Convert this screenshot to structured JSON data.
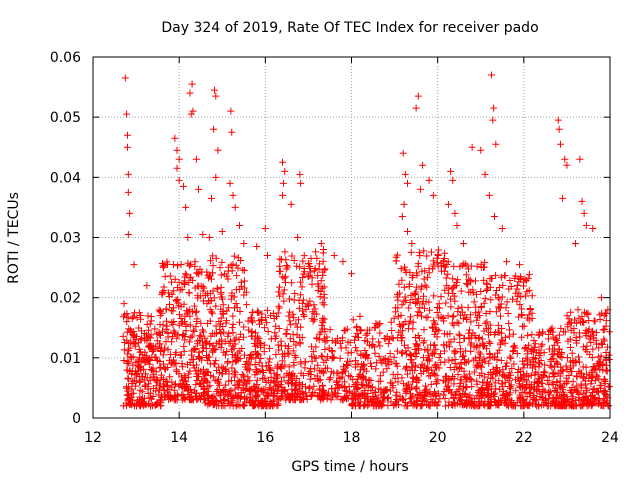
{
  "chart_data": {
    "type": "scatter",
    "title": "Day 324 of 2019, Rate Of TEC Index for receiver pado",
    "xlabel": "GPS time / hours",
    "ylabel": "ROTI / TECUs",
    "xlim": [
      12,
      24
    ],
    "ylim": [
      0,
      0.06
    ],
    "x_ticks": [
      12,
      14,
      16,
      18,
      20,
      22,
      24
    ],
    "x_tick_labels": [
      "12",
      "14",
      "16",
      "18",
      "20",
      "22",
      "24"
    ],
    "y_ticks": [
      0,
      0.01,
      0.02,
      0.03,
      0.04,
      0.05,
      0.06
    ],
    "y_tick_labels": [
      "0",
      "0.01",
      "0.02",
      "0.03",
      "0.04",
      "0.05",
      "0.06"
    ],
    "grid": true,
    "marker": "+",
    "color": "#ff0000",
    "series": [
      {
        "name": "ROTI",
        "points": [
          [
            12.75,
            0.0565
          ],
          [
            12.78,
            0.0505
          ],
          [
            12.8,
            0.047
          ],
          [
            12.8,
            0.045
          ],
          [
            12.82,
            0.0405
          ],
          [
            12.82,
            0.0375
          ],
          [
            12.85,
            0.034
          ],
          [
            12.82,
            0.0305
          ],
          [
            12.95,
            0.0255
          ],
          [
            12.72,
            0.019
          ],
          [
            13.25,
            0.022
          ],
          [
            13.6,
            0.0205
          ],
          [
            13.9,
            0.0465
          ],
          [
            13.95,
            0.0445
          ],
          [
            14.0,
            0.043
          ],
          [
            13.95,
            0.0415
          ],
          [
            14.0,
            0.0395
          ],
          [
            14.1,
            0.0385
          ],
          [
            14.15,
            0.035
          ],
          [
            14.2,
            0.03
          ],
          [
            14.3,
            0.0555
          ],
          [
            14.25,
            0.054
          ],
          [
            14.32,
            0.051
          ],
          [
            14.28,
            0.0505
          ],
          [
            14.4,
            0.043
          ],
          [
            14.45,
            0.038
          ],
          [
            14.55,
            0.0305
          ],
          [
            14.7,
            0.03
          ],
          [
            14.82,
            0.0545
          ],
          [
            14.85,
            0.0535
          ],
          [
            14.8,
            0.048
          ],
          [
            14.9,
            0.0445
          ],
          [
            14.85,
            0.04
          ],
          [
            14.75,
            0.0365
          ],
          [
            15.0,
            0.031
          ],
          [
            15.2,
            0.051
          ],
          [
            15.22,
            0.0475
          ],
          [
            15.18,
            0.039
          ],
          [
            15.25,
            0.037
          ],
          [
            15.3,
            0.035
          ],
          [
            15.4,
            0.032
          ],
          [
            15.5,
            0.029
          ],
          [
            15.8,
            0.0285
          ],
          [
            16.0,
            0.0315
          ],
          [
            16.05,
            0.027
          ],
          [
            16.4,
            0.0425
          ],
          [
            16.45,
            0.041
          ],
          [
            16.42,
            0.039
          ],
          [
            16.4,
            0.037
          ],
          [
            16.6,
            0.0355
          ],
          [
            16.8,
            0.0405
          ],
          [
            16.82,
            0.039
          ],
          [
            16.75,
            0.03
          ],
          [
            17.3,
            0.029
          ],
          [
            17.35,
            0.028
          ],
          [
            17.6,
            0.027
          ],
          [
            17.8,
            0.026
          ],
          [
            18.0,
            0.024
          ],
          [
            19.2,
            0.044
          ],
          [
            19.25,
            0.0405
          ],
          [
            19.3,
            0.039
          ],
          [
            19.22,
            0.0355
          ],
          [
            19.18,
            0.0335
          ],
          [
            19.3,
            0.031
          ],
          [
            19.4,
            0.029
          ],
          [
            19.55,
            0.0535
          ],
          [
            19.5,
            0.0515
          ],
          [
            19.65,
            0.042
          ],
          [
            19.6,
            0.038
          ],
          [
            19.8,
            0.0395
          ],
          [
            19.9,
            0.037
          ],
          [
            20.3,
            0.041
          ],
          [
            20.35,
            0.0395
          ],
          [
            20.25,
            0.0355
          ],
          [
            20.4,
            0.034
          ],
          [
            20.45,
            0.032
          ],
          [
            20.6,
            0.029
          ],
          [
            20.8,
            0.045
          ],
          [
            21.0,
            0.0445
          ],
          [
            21.1,
            0.0405
          ],
          [
            21.2,
            0.037
          ],
          [
            21.25,
            0.057
          ],
          [
            21.3,
            0.0515
          ],
          [
            21.28,
            0.0495
          ],
          [
            21.35,
            0.0455
          ],
          [
            21.32,
            0.0335
          ],
          [
            21.5,
            0.0315
          ],
          [
            21.6,
            0.026
          ],
          [
            21.9,
            0.0255
          ],
          [
            22.8,
            0.0495
          ],
          [
            22.82,
            0.048
          ],
          [
            22.85,
            0.0455
          ],
          [
            22.95,
            0.043
          ],
          [
            23.0,
            0.042
          ],
          [
            22.9,
            0.0365
          ],
          [
            23.3,
            0.043
          ],
          [
            23.35,
            0.036
          ],
          [
            23.4,
            0.034
          ],
          [
            23.45,
            0.032
          ],
          [
            23.2,
            0.029
          ],
          [
            23.6,
            0.0315
          ],
          [
            23.8,
            0.02
          ],
          [
            23.95,
            0.018
          ]
        ]
      }
    ],
    "density_bands": [
      {
        "x_range": [
          12.7,
          13.6
        ],
        "y_range": [
          0.002,
          0.018
        ],
        "count": 260
      },
      {
        "x_range": [
          13.6,
          14.6
        ],
        "y_range": [
          0.003,
          0.026
        ],
        "count": 300
      },
      {
        "x_range": [
          14.6,
          15.6
        ],
        "y_range": [
          0.002,
          0.027
        ],
        "count": 300
      },
      {
        "x_range": [
          15.6,
          16.3
        ],
        "y_range": [
          0.002,
          0.018
        ],
        "count": 200
      },
      {
        "x_range": [
          16.3,
          17.4
        ],
        "y_range": [
          0.003,
          0.028
        ],
        "count": 300
      },
      {
        "x_range": [
          17.4,
          18.0
        ],
        "y_range": [
          0.003,
          0.015
        ],
        "count": 90
      },
      {
        "x_range": [
          18.0,
          19.0
        ],
        "y_range": [
          0.002,
          0.017
        ],
        "count": 220
      },
      {
        "x_range": [
          19.0,
          20.2
        ],
        "y_range": [
          0.002,
          0.028
        ],
        "count": 340
      },
      {
        "x_range": [
          20.2,
          21.2
        ],
        "y_range": [
          0.002,
          0.026
        ],
        "count": 300
      },
      {
        "x_range": [
          21.2,
          22.2
        ],
        "y_range": [
          0.002,
          0.024
        ],
        "count": 280
      },
      {
        "x_range": [
          22.2,
          23.0
        ],
        "y_range": [
          0.002,
          0.015
        ],
        "count": 210
      },
      {
        "x_range": [
          23.0,
          24.0
        ],
        "y_range": [
          0.002,
          0.018
        ],
        "count": 260
      }
    ]
  }
}
